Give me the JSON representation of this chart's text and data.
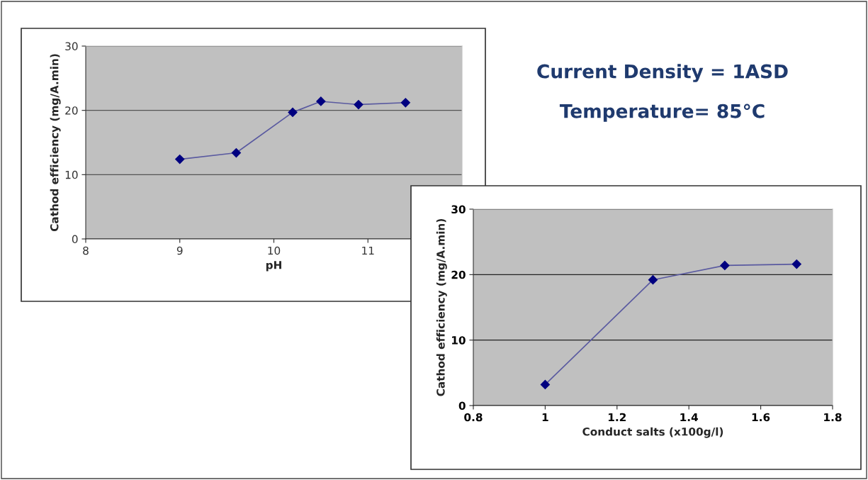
{
  "chart_data": [
    {
      "type": "line",
      "xlabel": "pH",
      "ylabel": "Cathod efficiency (mg/A.min)",
      "x": [
        9,
        9.6,
        10.2,
        10.5,
        10.9,
        11.4
      ],
      "series": [
        {
          "color": "#000080",
          "values": [
            12.4,
            13.4,
            19.7,
            21.4,
            20.9,
            21.2
          ]
        }
      ],
      "xlim": [
        8,
        12
      ],
      "xticks": [
        8,
        9,
        10,
        11
      ],
      "ylim": [
        0,
        30
      ],
      "yticks": [
        0,
        10,
        20,
        30
      ],
      "grid": "y",
      "marker": "diamond",
      "line_style": "solid",
      "annotations": [
        "Current Density = 1ASD",
        "Temperature= 85°C"
      ]
    },
    {
      "type": "line",
      "xlabel": "Conduct salts (x100g/l)",
      "ylabel": "Cathod efficiency (mg/A.min)",
      "x": [
        1,
        1.3,
        1.5,
        1.7
      ],
      "series": [
        {
          "color": "#000080",
          "values": [
            3.2,
            19.2,
            21.4,
            21.6
          ]
        }
      ],
      "xlim": [
        0.8,
        1.8
      ],
      "xticks": [
        0.8,
        1,
        1.2,
        1.4,
        1.6,
        1.8
      ],
      "ylim": [
        0,
        30
      ],
      "yticks": [
        0,
        10,
        20,
        30
      ],
      "grid": "y",
      "marker": "diamond",
      "line_style": "solid"
    }
  ]
}
